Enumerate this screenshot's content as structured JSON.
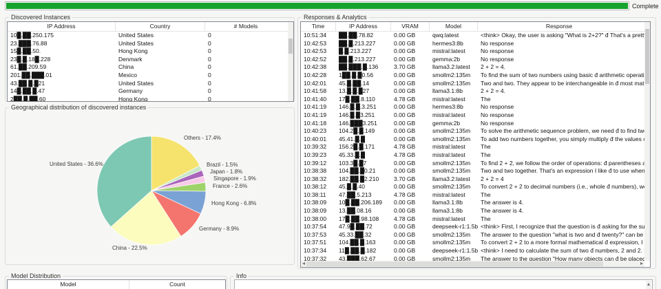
{
  "progress": {
    "status_label": "Complete",
    "percent": 100,
    "bar_color": "#16a32d"
  },
  "discovered": {
    "title": "Discovered Instances",
    "columns": [
      "IP Address",
      "Country",
      "# Models"
    ],
    "rows": [
      {
        "ip": "10█.██.250.175",
        "country": "United States",
        "models": "0"
      },
      {
        "ip": "23.███.76.88",
        "country": "United States",
        "models": "0"
      },
      {
        "ip": "15█.██.50.",
        "country": "Hong Kong",
        "models": "0"
      },
      {
        "ip": "23█.█.18█.228",
        "country": "Denmark",
        "models": "0"
      },
      {
        "ip": "61.██.209.59",
        "country": "China",
        "models": "0"
      },
      {
        "ip": "201.██.███.01",
        "country": "Mexico",
        "models": "0"
      },
      {
        "ip": "43.██.█.█21",
        "country": "United States",
        "models": "0"
      },
      {
        "ip": "14█.██.█.47",
        "country": "Germany",
        "models": "0"
      },
      {
        "ip": "2██.█.██.60",
        "country": "Hong Kong",
        "models": "0"
      }
    ]
  },
  "geo": {
    "title": "Geographical distribution of discovered instances"
  },
  "chart_data": {
    "type": "pie",
    "title": "Geographical distribution of discovered instances",
    "categories": [
      "Others",
      "Brazil",
      "Japan",
      "Singapore",
      "France",
      "Hong Kong",
      "Germany",
      "China",
      "United States"
    ],
    "values": [
      17.4,
      1.5,
      1.8,
      1.9,
      2.6,
      6.8,
      8.9,
      22.5,
      36.6
    ],
    "labels": [
      "Others - 17.4%",
      "Brazil - 1.5%",
      "Japan - 1.8%",
      "Singapore - 1.9%",
      "France - 2.6%",
      "Hong Kong - 6.8%",
      "Germany - 8.9%",
      "China - 22.5%",
      "United States - 36.6%"
    ],
    "colors": [
      "#f5e36e",
      "#c9e8c9",
      "#aa66bb",
      "#f7cbe8",
      "#9ed36a",
      "#7ba2d4",
      "#f4756e",
      "#fbfcbd",
      "#7dc8b3"
    ],
    "start_angle_deg": 0,
    "direction": "clockwise",
    "legend": false
  },
  "responses": {
    "title": "Responses & Analytics",
    "columns": [
      "Time",
      "IP Address",
      "VRAM",
      "Model",
      "Response"
    ],
    "rows": [
      [
        "10:51:34",
        "██.██.78.82",
        "0.00 GB",
        "qwq:latest",
        "<think> Okay, the user is asking \"What is 2+2?\" đ That's a pretty basic arithme"
      ],
      [
        "10:42:53",
        "██.█.213.227",
        "0.00 GB",
        "hermes3:8b",
        "No response"
      ],
      [
        "10:42:53",
        "█.█.213.227",
        "0.00 GB",
        "mistral:latest",
        "No response"
      ],
      [
        "10:42:52",
        "██.█.213.227",
        "0.00 GB",
        "gemma:2b",
        "No response"
      ],
      [
        "10:42:38",
        "██.███.█.136",
        "3.70 GB",
        "llama3.2:latest",
        "2 + 2 = 4."
      ],
      [
        "10:42:28",
        "1██.█.█0.56",
        "0.00 GB",
        "smollm2:135m",
        "To find the sum of two numbers using basic đ arithmetic operations: 1. Subtra"
      ],
      [
        "10:42:01",
        "45.█.██.14",
        "0.00 GB",
        "smollm2:135m",
        "Two and two. They appear to be interchangeable in đ most mathematical con"
      ],
      [
        "10:41:58",
        "13.█.█.█27",
        "0.00 GB",
        "llama3.1:8b",
        "2 + 2 = 4."
      ],
      [
        "10:41:40",
        "17█.██.8.110",
        "4.78 GB",
        "mistral:latest",
        "The"
      ],
      [
        "10:41:19",
        "146.█.█.3.251",
        "0.00 GB",
        "hermes3:8b",
        "No response"
      ],
      [
        "10:41:19",
        "146.█.█3.251",
        "0.00 GB",
        "mistral:latest",
        "No response"
      ],
      [
        "10:41:18",
        "146.███3.251",
        "0.00 GB",
        "gemma:2b",
        "No response"
      ],
      [
        "10:40:23",
        "104.2█.█.149",
        "0.00 GB",
        "smollm2:135m",
        "To solve the arithmetic sequence problem, we need đ to find two numbers tha"
      ],
      [
        "10:40:01",
        "45.41.█.█",
        "0.00 GB",
        "smollm2:135m",
        "To add two numbers together, you simply multiply đ the values on both sides"
      ],
      [
        "10:39:32",
        "156.2█.█.171",
        "4.78 GB",
        "mistral:latest",
        "The"
      ],
      [
        "10:39:23",
        "45.33.█.█",
        "4.78 GB",
        "mistral:latest",
        "The"
      ],
      [
        "10:39:12",
        "103.3█.█7",
        "0.00 GB",
        "smollm2:135m",
        "To find 2 + 2, we follow the order of operations: đ parentheses and exponents"
      ],
      [
        "10:38:38",
        "104.██.█0.21",
        "0.00 GB",
        "smollm2:135m",
        "Two and two together. That's an expression I like đ to use when I need some e"
      ],
      [
        "10:38:32",
        "182.██.█2.210",
        "3.70 GB",
        "llama3.2:latest",
        "2 + 2 = 4"
      ],
      [
        "10:38:12",
        "45.█.█.40",
        "0.00 GB",
        "smollm2:135m",
        "To convert 2 + 2 to decimal numbers (i.e., whole đ numbers), we follow these"
      ],
      [
        "10:38:11",
        "47.██.5.213",
        "4.78 GB",
        "mistral:latest",
        "The"
      ],
      [
        "10:38:09",
        "10█.██.206.189",
        "0.00 GB",
        "llama3.1:8b",
        "The answer is 4."
      ],
      [
        "10:38:09",
        "13.██.08.16",
        "0.00 GB",
        "llama3.1:8b",
        "The answer is 4."
      ],
      [
        "10:38:00",
        "17█.██.98.108",
        "4.78 GB",
        "mistral:latest",
        "The"
      ],
      [
        "10:37:54",
        "47.9█.██.72",
        "0.00 GB",
        "deepseek-r1:1.5b",
        "<think> First, I recognize that the question is đ asking for the sum of two num"
      ],
      [
        "10:37:53",
        "45.33.██.32",
        "0.00 GB",
        "smollm2:135m",
        "The answer to the question \"what is two and đ twenty?\" can be found on vario"
      ],
      [
        "10:37:51",
        "104.██.█.163",
        "0.00 GB",
        "smollm2:135m",
        "To convert 2 + 2 to a more formal mathematical đ expression, I would conside"
      ],
      [
        "10:37:34",
        "11█.██.█.182",
        "0.00 GB",
        "deepseek-r1:1.5b",
        "<think> I need to calculate the sum of two đ numbers, 2 and 2. By adding the"
      ],
      [
        "10:37:32",
        "43.███.62.67",
        "0.00 GB",
        "smollm2:135m",
        "The answer to the question \"How many objects can đ be placed at one end of"
      ]
    ]
  },
  "model_distribution": {
    "title": "Model Distribution",
    "columns": [
      "Model",
      "Count"
    ],
    "rows": []
  },
  "info": {
    "title": "Info",
    "content": ""
  }
}
